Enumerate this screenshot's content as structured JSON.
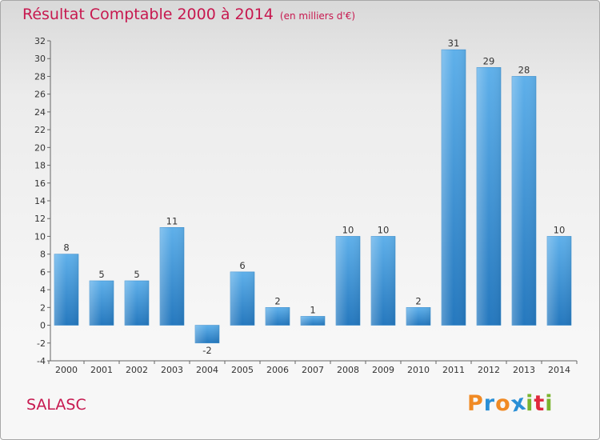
{
  "title": {
    "main": "Résultat Comptable 2000 à 2014",
    "unit": "(en milliers d'€)"
  },
  "commune": "SALASC",
  "brand": {
    "letters": [
      "P",
      "r",
      "o",
      "x",
      "i",
      "t",
      "i"
    ],
    "colors": [
      "#f08a24",
      "#2a8fd6",
      "#f08a24",
      "#2a8fd6",
      "#7ab42e",
      "#e0283c",
      "#7ab42e"
    ]
  },
  "colors": {
    "title": "#c7184f",
    "bar_top": "#5fb0ea",
    "bar_bottom": "#2578be"
  },
  "chart_data": {
    "type": "bar",
    "categories": [
      "2000",
      "2001",
      "2002",
      "2003",
      "2004",
      "2005",
      "2006",
      "2007",
      "2008",
      "2009",
      "2010",
      "2011",
      "2012",
      "2013",
      "2014"
    ],
    "values": [
      8,
      5,
      5,
      11,
      -2,
      6,
      2,
      1,
      10,
      10,
      2,
      31,
      29,
      28,
      10
    ],
    "data_labels": [
      "8",
      "5",
      "5",
      "11",
      "-2",
      "6",
      "2",
      "1",
      "10",
      "10",
      "2",
      "31",
      "29",
      "28",
      "10"
    ],
    "title": "Résultat Comptable 2000 à 2014",
    "xlabel": "",
    "ylabel": "",
    "ylim": [
      -4,
      32
    ],
    "yticks": [
      -4,
      -2,
      0,
      2,
      4,
      6,
      8,
      10,
      12,
      14,
      16,
      18,
      20,
      22,
      24,
      26,
      28,
      30,
      32
    ],
    "grid": false,
    "legend": "none"
  }
}
